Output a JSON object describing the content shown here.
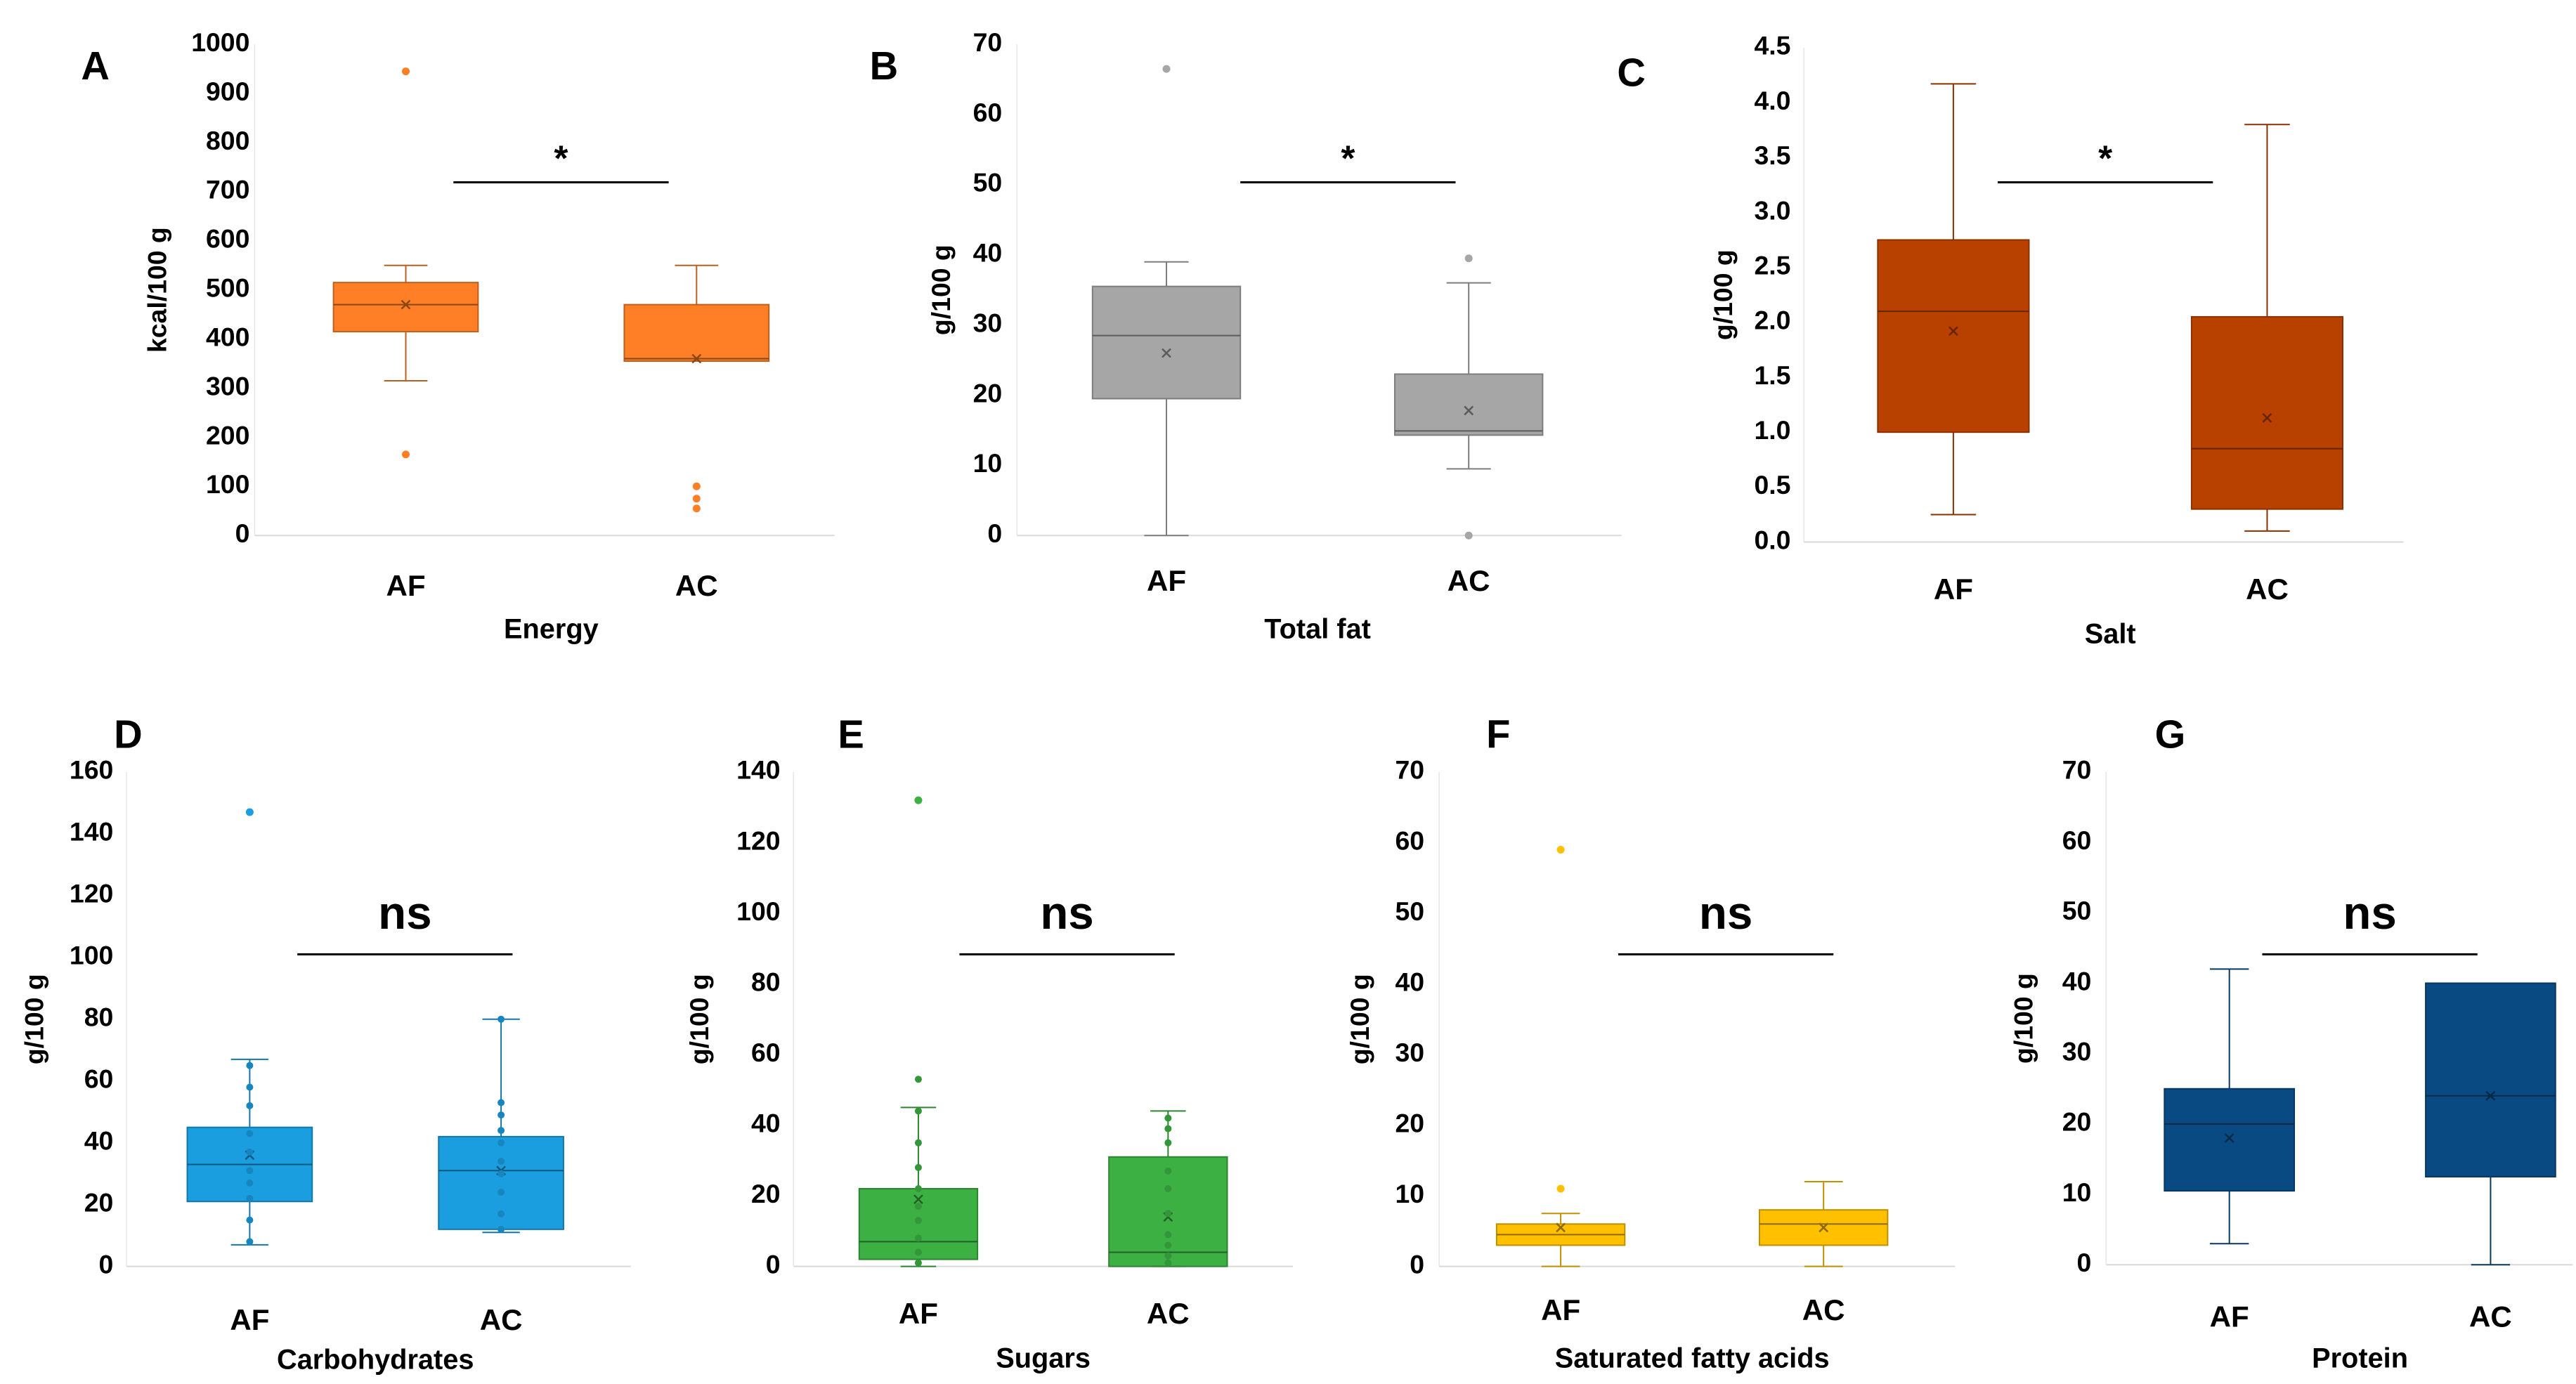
{
  "chart_data": [
    {
      "panel": "A",
      "type": "box",
      "title": "",
      "xlabel": "Energy",
      "ylabel": "kcal/100 g",
      "ylim": [
        0,
        1000
      ],
      "yticks": [
        0,
        100,
        200,
        300,
        400,
        500,
        600,
        700,
        800,
        900,
        1000
      ],
      "ytick_labels": [
        "0",
        "100",
        "200",
        "300",
        "400",
        "500",
        "600",
        "700",
        "800",
        "900",
        "1000"
      ],
      "categories": [
        "AF",
        "AC"
      ],
      "color": "#ff7f27",
      "significance": "*",
      "boxes": [
        {
          "name": "AF",
          "min": 315,
          "q1": 415,
          "median": 470,
          "q3": 515,
          "max": 550,
          "mean": 470,
          "outliers": [
            945,
            165
          ],
          "points": []
        },
        {
          "name": "AC",
          "min": 355,
          "q1": 355,
          "median": 360,
          "q3": 470,
          "max": 550,
          "mean": 360,
          "outliers": [
            100,
            75,
            55
          ],
          "points": []
        }
      ]
    },
    {
      "panel": "B",
      "type": "box",
      "title": "",
      "xlabel": "Total fat",
      "ylabel": "g/100 g",
      "ylim": [
        0,
        70
      ],
      "yticks": [
        0,
        10,
        20,
        30,
        40,
        50,
        60,
        70
      ],
      "ytick_labels": [
        "0",
        "10",
        "20",
        "30",
        "40",
        "50",
        "60",
        "70"
      ],
      "categories": [
        "AF",
        "AC"
      ],
      "color": "#a6a6a6",
      "significance": "*",
      "boxes": [
        {
          "name": "AF",
          "min": 0,
          "q1": 19.5,
          "median": 28.5,
          "q3": 35.5,
          "max": 39,
          "mean": 26,
          "outliers": [
            66.5
          ],
          "points": []
        },
        {
          "name": "AC",
          "min": 9.5,
          "q1": 14.3,
          "median": 14.9,
          "q3": 23,
          "max": 36,
          "mean": 17.8,
          "outliers": [
            39.5,
            0
          ],
          "points": []
        }
      ]
    },
    {
      "panel": "C",
      "type": "box",
      "title": "",
      "xlabel": "Salt",
      "ylabel": "g/100 g",
      "ylim": [
        0,
        4.5
      ],
      "yticks": [
        0,
        0.5,
        1,
        1.5,
        2,
        2.5,
        3,
        3.5,
        4,
        4.5
      ],
      "ytick_labels": [
        "0.0",
        "0.5",
        "1.0",
        "1.5",
        "2.0",
        "2.5",
        "3.0",
        "3.5",
        "4.0",
        "4.5"
      ],
      "categories": [
        "AF",
        "AC"
      ],
      "color": "#b94100",
      "significance": "*",
      "boxes": [
        {
          "name": "AF",
          "min": 0.25,
          "q1": 1.0,
          "median": 2.1,
          "q3": 2.75,
          "max": 4.17,
          "mean": 1.92,
          "outliers": [],
          "points": []
        },
        {
          "name": "AC",
          "min": 0.1,
          "q1": 0.3,
          "median": 0.85,
          "q3": 2.05,
          "max": 3.8,
          "mean": 1.13,
          "outliers": [],
          "points": []
        }
      ]
    },
    {
      "panel": "D",
      "type": "box",
      "title": "",
      "xlabel": "Carbohydrates",
      "ylabel": "g/100 g",
      "ylim": [
        0,
        160
      ],
      "yticks": [
        0,
        20,
        40,
        60,
        80,
        100,
        120,
        140,
        160
      ],
      "ytick_labels": [
        "0",
        "20",
        "40",
        "60",
        "80",
        "100",
        "120",
        "140",
        "160"
      ],
      "categories": [
        "AF",
        "AC"
      ],
      "color": "#1b9ee0",
      "significance": "ns",
      "boxes": [
        {
          "name": "AF",
          "min": 7,
          "q1": 21,
          "median": 33,
          "q3": 45,
          "max": 67,
          "mean": 36,
          "outliers": [
            147
          ],
          "points": [
            8,
            15,
            22,
            27,
            31,
            37,
            43,
            52,
            58,
            65
          ]
        },
        {
          "name": "AC",
          "min": 11,
          "q1": 12,
          "median": 31,
          "q3": 42,
          "max": 80,
          "mean": 31,
          "outliers": [],
          "points": [
            12,
            17,
            24,
            30,
            34,
            40,
            44,
            49,
            53,
            80
          ]
        }
      ]
    },
    {
      "panel": "E",
      "type": "box",
      "title": "",
      "xlabel": "Sugars",
      "ylabel": "g/100 g",
      "ylim": [
        0,
        140
      ],
      "yticks": [
        0,
        20,
        40,
        60,
        80,
        100,
        120,
        140
      ],
      "ytick_labels": [
        "0",
        "20",
        "40",
        "60",
        "80",
        "100",
        "120",
        "140"
      ],
      "categories": [
        "AF",
        "AC"
      ],
      "color": "#3cb043",
      "significance": "ns",
      "boxes": [
        {
          "name": "AF",
          "min": 0,
          "q1": 2,
          "median": 7,
          "q3": 22,
          "max": 45,
          "mean": 19,
          "outliers": [
            132
          ],
          "points": [
            1,
            4,
            8,
            13,
            17,
            22,
            28,
            35,
            44,
            53
          ]
        },
        {
          "name": "AC",
          "min": 0,
          "q1": 0,
          "median": 4,
          "q3": 31,
          "max": 44,
          "mean": 14,
          "outliers": [],
          "points": [
            1,
            3,
            6,
            9,
            15,
            22,
            27,
            35,
            39,
            42
          ]
        }
      ]
    },
    {
      "panel": "F",
      "type": "box",
      "title": "",
      "xlabel": "Saturated fatty acids",
      "ylabel": "g/100 g",
      "ylim": [
        0,
        70
      ],
      "yticks": [
        0,
        10,
        20,
        30,
        40,
        50,
        60,
        70
      ],
      "ytick_labels": [
        "0",
        "10",
        "20",
        "30",
        "40",
        "50",
        "60",
        "70"
      ],
      "categories": [
        "AF",
        "AC"
      ],
      "color": "#ffc000",
      "significance": "ns",
      "boxes": [
        {
          "name": "AF",
          "min": 0,
          "q1": 3,
          "median": 4.5,
          "q3": 6,
          "max": 7.5,
          "mean": 5.5,
          "outliers": [
            59,
            11
          ],
          "points": []
        },
        {
          "name": "AC",
          "min": 0,
          "q1": 3,
          "median": 6,
          "q3": 8,
          "max": 12,
          "mean": 5.5,
          "outliers": [],
          "points": []
        }
      ]
    },
    {
      "panel": "G",
      "type": "box",
      "title": "",
      "xlabel": "Protein",
      "ylabel": "g/100 g",
      "ylim": [
        0,
        70
      ],
      "yticks": [
        0,
        10,
        20,
        30,
        40,
        50,
        60,
        70
      ],
      "ytick_labels": [
        "0",
        "10",
        "20",
        "30",
        "40",
        "50",
        "60",
        "70"
      ],
      "categories": [
        "AF",
        "AC"
      ],
      "color": "#0a4a82",
      "significance": "ns",
      "boxes": [
        {
          "name": "AF",
          "min": 3,
          "q1": 10.5,
          "median": 20,
          "q3": 25,
          "max": 42,
          "mean": 18,
          "outliers": [],
          "points": []
        },
        {
          "name": "AC",
          "min": 0,
          "q1": 12.5,
          "median": 24,
          "q3": 40,
          "max": 40,
          "mean": 24,
          "outliers": [],
          "points": []
        }
      ]
    }
  ]
}
